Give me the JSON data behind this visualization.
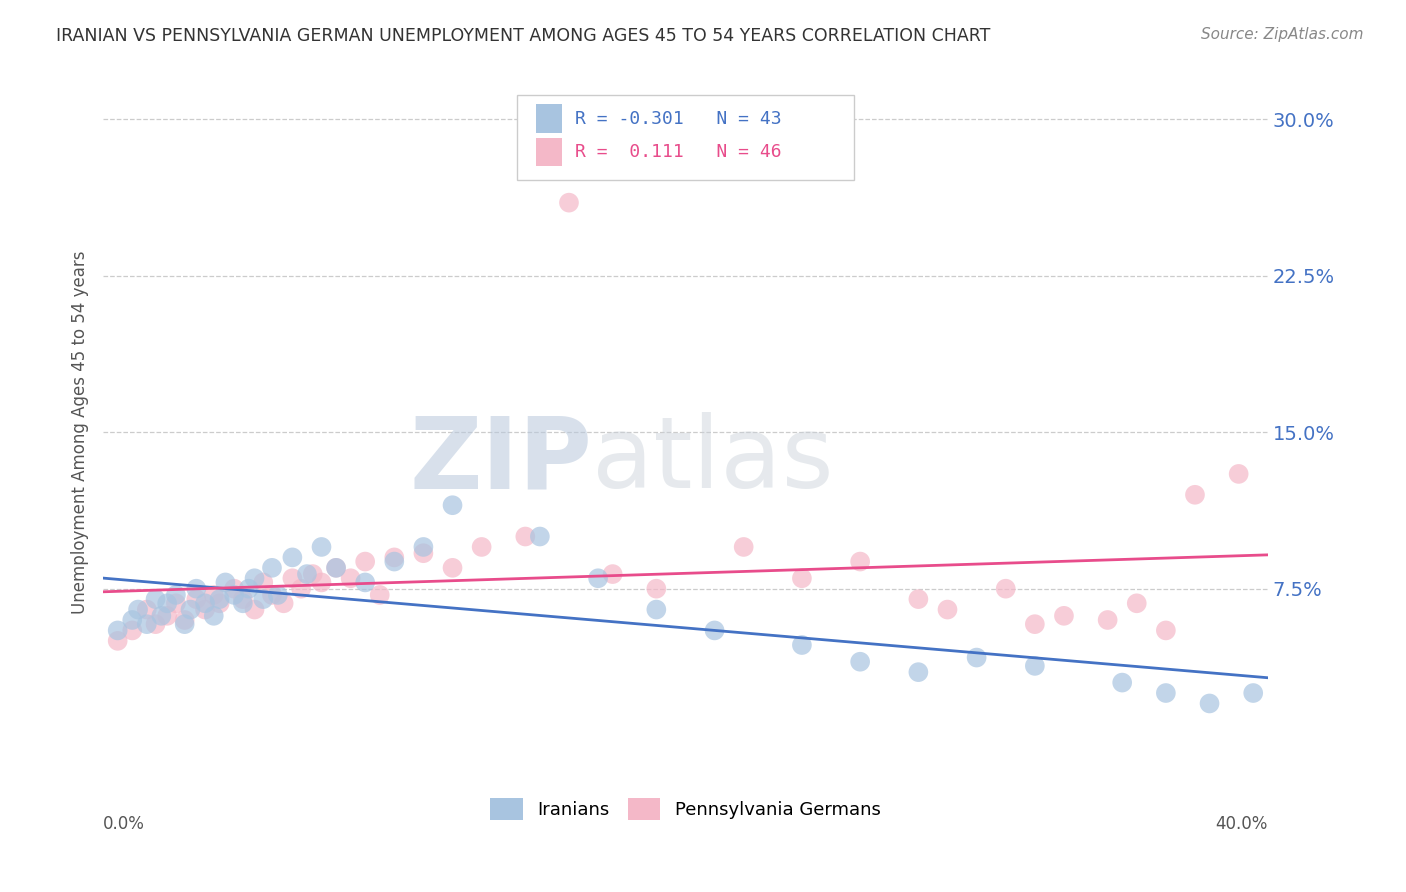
{
  "title": "IRANIAN VS PENNSYLVANIA GERMAN UNEMPLOYMENT AMONG AGES 45 TO 54 YEARS CORRELATION CHART",
  "source": "Source: ZipAtlas.com",
  "ylabel": "Unemployment Among Ages 45 to 54 years",
  "xlim": [
    0.0,
    0.4
  ],
  "ylim": [
    -0.02,
    0.32
  ],
  "yticks": [
    0.075,
    0.15,
    0.225,
    0.3
  ],
  "ytick_labels": [
    "7.5%",
    "15.0%",
    "22.5%",
    "30.0%"
  ],
  "xtick_left_label": "0.0%",
  "xtick_right_label": "40.0%",
  "iranian_color": "#a8c4e0",
  "penn_german_color": "#f4b8c8",
  "iranian_line_color": "#4472c4",
  "penn_german_line_color": "#e84c8b",
  "R_iranian": -0.301,
  "N_iranian": 43,
  "R_penn": 0.111,
  "N_penn": 46,
  "background_color": "#ffffff",
  "watermark_zip": "ZIP",
  "watermark_atlas": "atlas",
  "iranian_x": [
    0.005,
    0.01,
    0.012,
    0.015,
    0.018,
    0.02,
    0.022,
    0.025,
    0.028,
    0.03,
    0.032,
    0.035,
    0.038,
    0.04,
    0.042,
    0.045,
    0.048,
    0.05,
    0.052,
    0.055,
    0.058,
    0.06,
    0.065,
    0.07,
    0.075,
    0.08,
    0.09,
    0.1,
    0.11,
    0.12,
    0.15,
    0.17,
    0.19,
    0.21,
    0.24,
    0.26,
    0.28,
    0.3,
    0.32,
    0.35,
    0.365,
    0.38,
    0.395
  ],
  "iranian_y": [
    0.055,
    0.06,
    0.065,
    0.058,
    0.07,
    0.062,
    0.068,
    0.072,
    0.058,
    0.065,
    0.075,
    0.068,
    0.062,
    0.07,
    0.078,
    0.072,
    0.068,
    0.075,
    0.08,
    0.07,
    0.085,
    0.072,
    0.09,
    0.082,
    0.095,
    0.085,
    0.078,
    0.088,
    0.095,
    0.115,
    0.1,
    0.08,
    0.065,
    0.055,
    0.048,
    0.04,
    0.035,
    0.042,
    0.038,
    0.03,
    0.025,
    0.02,
    0.025
  ],
  "penn_x": [
    0.005,
    0.01,
    0.015,
    0.018,
    0.022,
    0.025,
    0.028,
    0.032,
    0.035,
    0.038,
    0.04,
    0.045,
    0.048,
    0.052,
    0.055,
    0.058,
    0.062,
    0.065,
    0.068,
    0.072,
    0.075,
    0.08,
    0.085,
    0.09,
    0.095,
    0.1,
    0.11,
    0.12,
    0.13,
    0.145,
    0.16,
    0.175,
    0.19,
    0.22,
    0.24,
    0.26,
    0.28,
    0.29,
    0.31,
    0.32,
    0.33,
    0.345,
    0.355,
    0.365,
    0.375,
    0.39
  ],
  "penn_y": [
    0.05,
    0.055,
    0.065,
    0.058,
    0.062,
    0.068,
    0.06,
    0.07,
    0.065,
    0.072,
    0.068,
    0.075,
    0.07,
    0.065,
    0.078,
    0.072,
    0.068,
    0.08,
    0.075,
    0.082,
    0.078,
    0.085,
    0.08,
    0.088,
    0.072,
    0.09,
    0.092,
    0.085,
    0.095,
    0.1,
    0.26,
    0.082,
    0.075,
    0.095,
    0.08,
    0.088,
    0.07,
    0.065,
    0.075,
    0.058,
    0.062,
    0.06,
    0.068,
    0.055,
    0.12,
    0.13
  ]
}
